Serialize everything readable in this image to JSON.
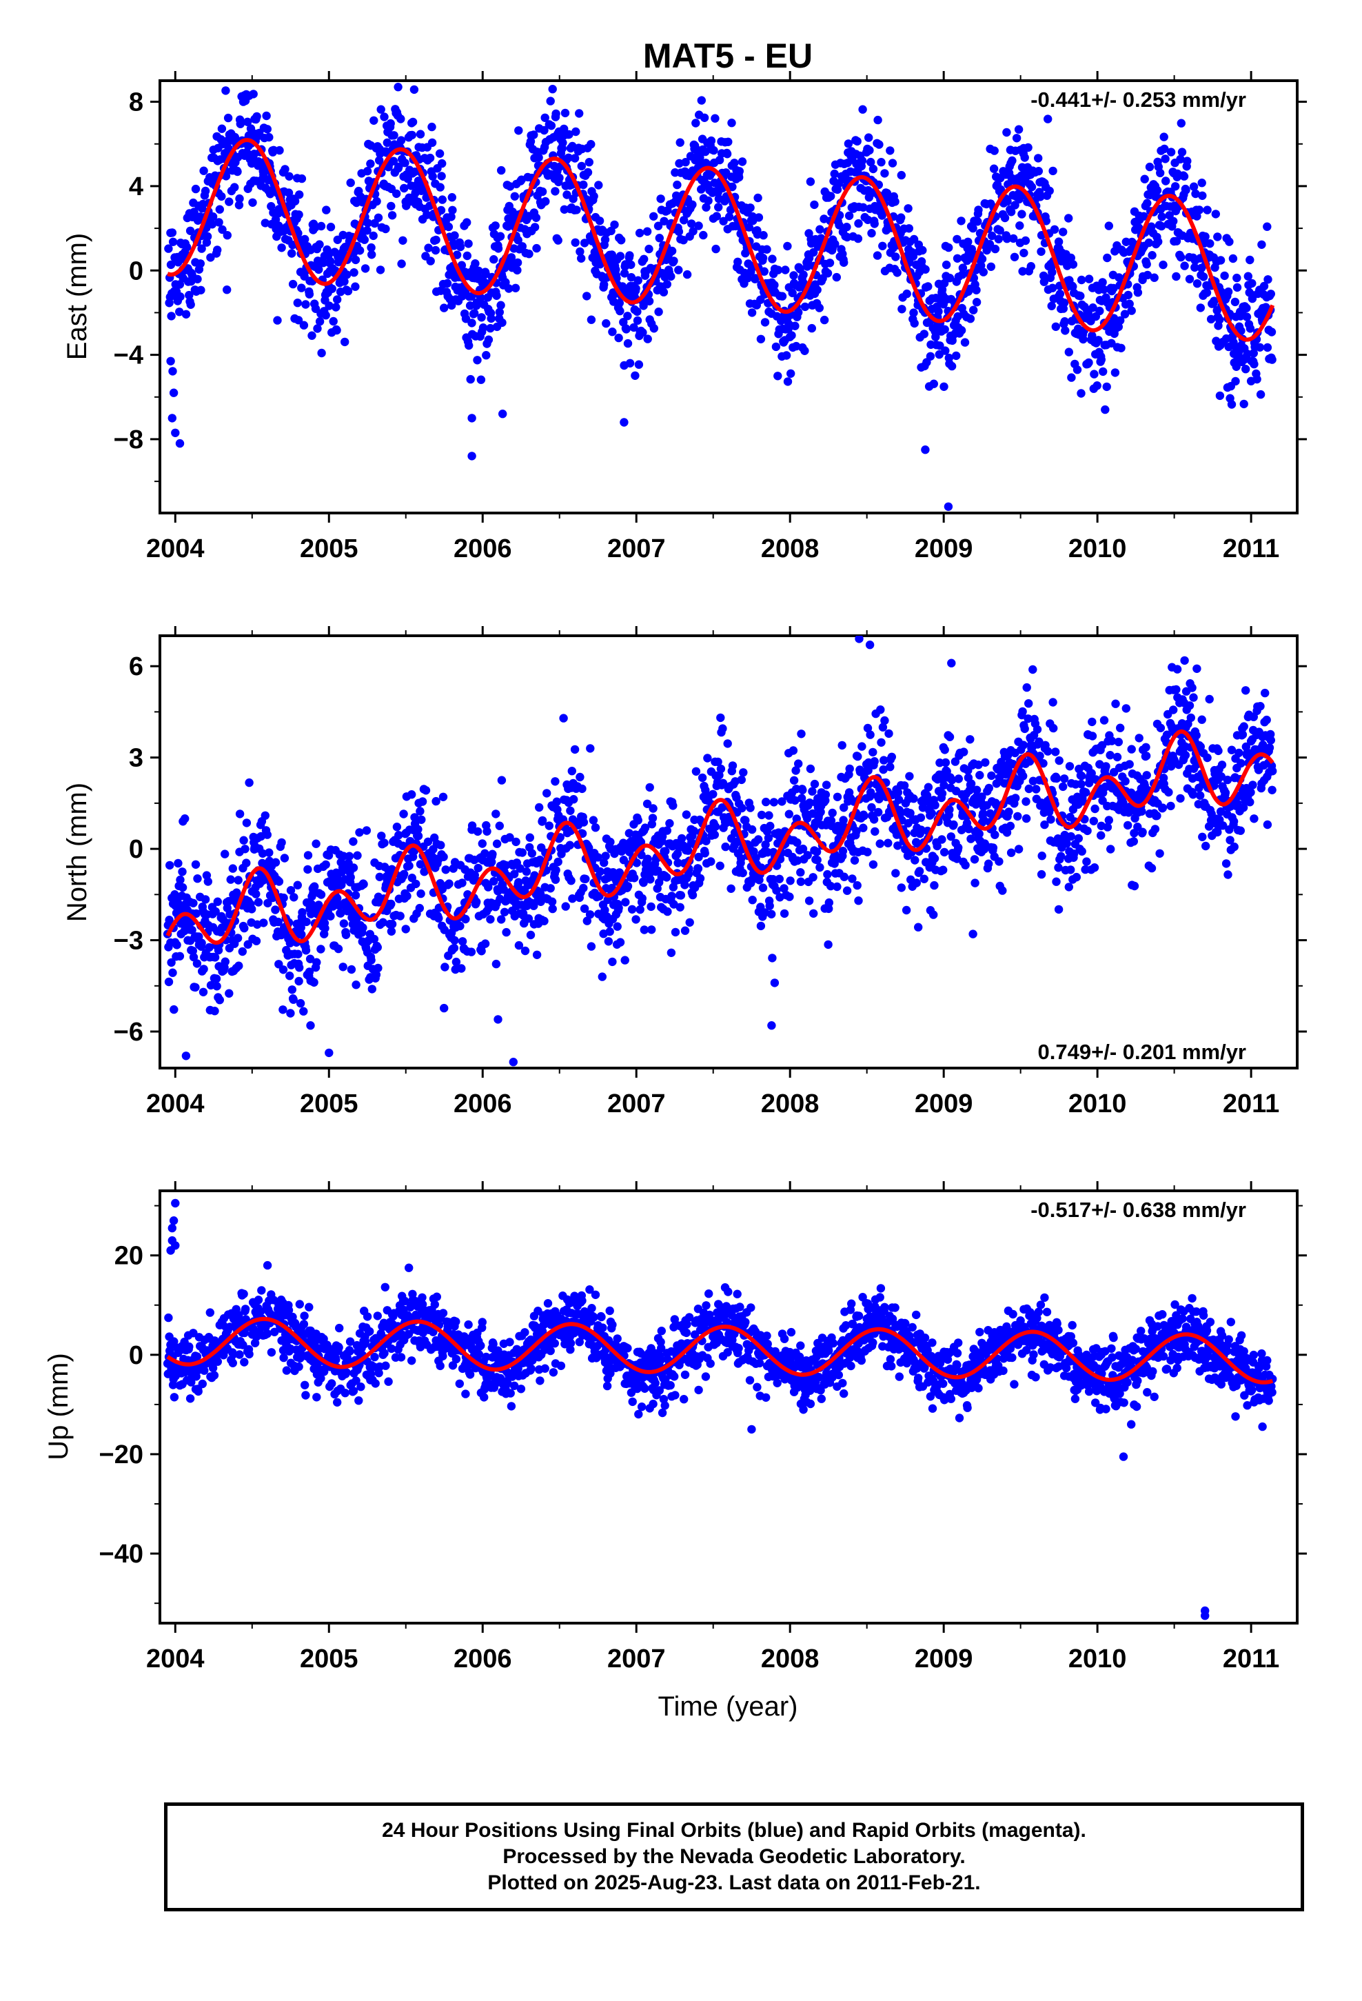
{
  "title": "MAT5 - EU",
  "xlabel": "Time (year)",
  "footer": {
    "line1": "24 Hour Positions Using Final Orbits (blue) and Rapid Orbits (magenta).",
    "line2": "Processed by the Nevada Geodetic Laboratory.",
    "line3": "Plotted on 2025-Aug-23. Last data on 2011-Feb-21."
  },
  "colors": {
    "data_points": "#0000ff",
    "model_fit": "#ff0000",
    "axes": "#000000"
  },
  "chart_data": [
    {
      "type": "scatter",
      "component": "East",
      "ylabel": "East (mm)",
      "rate_label": "-0.441+/- 0.253 mm/yr",
      "rate_position": "top-right",
      "xlim": [
        2003.9,
        2011.3
      ],
      "ylim": [
        -11.5,
        9.0
      ],
      "xticks": [
        2004,
        2005,
        2006,
        2007,
        2008,
        2009,
        2010,
        2011
      ],
      "yticks": [
        -8,
        -4,
        0,
        4,
        8
      ],
      "yticklabels": [
        "−8",
        "−4",
        "0",
        "4",
        "8"
      ],
      "model": {
        "offset": 1.55,
        "slope": -0.441,
        "annual_amp": 3.3,
        "annual_peak": 0.47,
        "semiannual_amp": 0.0,
        "semiannual_peak": 0.0,
        "t0": 2007.5,
        "t_start": 2003.95,
        "t_end": 2011.14
      },
      "scatter_sd": 1.5,
      "outliers": [
        [
          2003.97,
          -4.3
        ],
        [
          2003.98,
          -7.0
        ],
        [
          2004.0,
          -7.7
        ],
        [
          2004.03,
          -8.2
        ],
        [
          2003.99,
          -5.8
        ],
        [
          2005.93,
          -7.0
        ],
        [
          2005.93,
          -8.8
        ],
        [
          2006.13,
          -6.8
        ],
        [
          2006.92,
          -7.2
        ],
        [
          2008.88,
          -8.5
        ],
        [
          2009.03,
          -11.2
        ],
        [
          2005.45,
          8.7
        ],
        [
          2004.45,
          8.3
        ],
        [
          2007.62,
          7.0
        ],
        [
          2009.52,
          5.8
        ],
        [
          2010.05,
          -6.6
        ]
      ],
      "series": [
        {
          "name": "Final Orbits",
          "note": "daily positions (blue)"
        },
        {
          "name": "Model fit",
          "note": "trend + seasonal (red)"
        }
      ]
    },
    {
      "type": "scatter",
      "component": "North",
      "ylabel": "North (mm)",
      "rate_label": "0.749+/- 0.201 mm/yr",
      "rate_position": "bottom-right",
      "xlim": [
        2003.9,
        2011.3
      ],
      "ylim": [
        -7.2,
        7.0
      ],
      "xticks": [
        2004,
        2005,
        2006,
        2007,
        2008,
        2009,
        2010,
        2011
      ],
      "yticks": [
        -6,
        -3,
        0,
        3,
        6
      ],
      "yticklabels": [
        "−6",
        "−3",
        "0",
        "3",
        "6"
      ],
      "model": {
        "offset": 0.1,
        "slope": 0.749,
        "annual_amp": 0.6,
        "annual_peak": 0.5,
        "semiannual_amp": 0.9,
        "semiannual_peak": 0.05,
        "t0": 2007.5,
        "t_start": 2003.95,
        "t_end": 2011.14
      },
      "scatter_sd": 1.1,
      "outliers": [
        [
          2004.05,
          0.9
        ],
        [
          2004.07,
          -6.8
        ],
        [
          2004.88,
          -5.8
        ],
        [
          2005.0,
          -6.7
        ],
        [
          2006.1,
          -5.6
        ],
        [
          2006.2,
          -7.0
        ],
        [
          2007.88,
          -5.8
        ],
        [
          2007.9,
          -4.4
        ],
        [
          2008.45,
          6.9
        ],
        [
          2008.52,
          6.7
        ],
        [
          2009.05,
          6.1
        ],
        [
          2010.52,
          5.9
        ],
        [
          2006.7,
          3.3
        ]
      ],
      "series": [
        {
          "name": "Final Orbits",
          "note": "daily positions (blue)"
        },
        {
          "name": "Model fit",
          "note": "trend + seasonal (red)"
        }
      ]
    },
    {
      "type": "scatter",
      "component": "Up",
      "ylabel": "Up (mm)",
      "rate_label": "-0.517+/- 0.638 mm/yr",
      "rate_position": "top-right",
      "xlim": [
        2003.9,
        2011.3
      ],
      "ylim": [
        -54.0,
        33.0
      ],
      "xticks": [
        2004,
        2005,
        2006,
        2007,
        2008,
        2009,
        2010,
        2011
      ],
      "yticks": [
        -40,
        -20,
        0,
        20
      ],
      "yticklabels": [
        "−40",
        "−20",
        "0",
        "20"
      ],
      "model": {
        "offset": 1.0,
        "slope": -0.517,
        "annual_amp": 4.7,
        "annual_peak": 0.58,
        "semiannual_amp": 0.0,
        "semiannual_peak": 0.0,
        "t0": 2007.5,
        "t_start": 2003.95,
        "t_end": 2011.14
      },
      "scatter_sd": 3.2,
      "outliers": [
        [
          2003.97,
          21.0
        ],
        [
          2003.98,
          23.0
        ],
        [
          2003.98,
          25.5
        ],
        [
          2003.99,
          27.0
        ],
        [
          2004.0,
          30.5
        ],
        [
          2004.0,
          22.0
        ],
        [
          2010.17,
          -20.5
        ],
        [
          2010.22,
          -14.0
        ],
        [
          2010.7,
          -51.5
        ],
        [
          2010.7,
          -52.5
        ],
        [
          2004.6,
          18.0
        ],
        [
          2005.52,
          17.5
        ],
        [
          2007.75,
          -15.0
        ]
      ],
      "series": [
        {
          "name": "Final Orbits",
          "note": "daily positions (blue)"
        },
        {
          "name": "Model fit",
          "note": "trend + seasonal (red)"
        }
      ]
    }
  ]
}
